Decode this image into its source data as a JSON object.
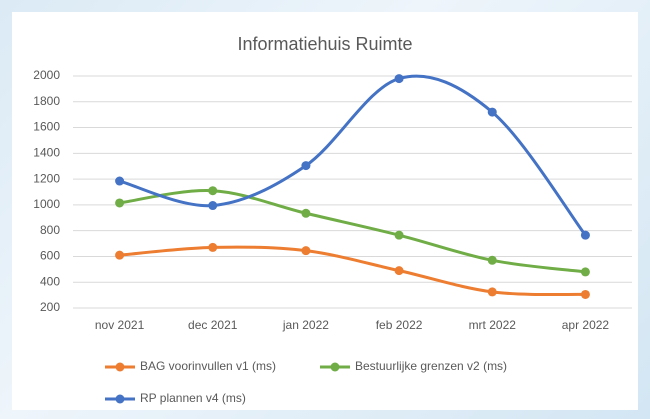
{
  "chart_data": {
    "type": "line",
    "title": "Informatiehuis Ruimte",
    "categories": [
      "nov 2021",
      "dec 2021",
      "jan 2022",
      "feb 2022",
      "mrt 2022",
      "apr 2022"
    ],
    "series": [
      {
        "name": "BAG voorinvullen v1 (ms)",
        "color": "#ed7d31",
        "values": [
          610,
          670,
          645,
          490,
          325,
          305
        ]
      },
      {
        "name": "Bestuurlijke grenzen v2 (ms)",
        "color": "#70ad47",
        "values": [
          1015,
          1110,
          935,
          765,
          570,
          480
        ]
      },
      {
        "name": "RP plannen v4 (ms)",
        "color": "#4472c4",
        "values": [
          1185,
          995,
          1305,
          1980,
          1720,
          765
        ]
      }
    ],
    "ylim": [
      200,
      2000
    ],
    "yticks": [
      200,
      400,
      600,
      800,
      1000,
      1200,
      1400,
      1600,
      1800,
      2000
    ],
    "grid": true,
    "smooth": true,
    "legend": "bottom"
  }
}
